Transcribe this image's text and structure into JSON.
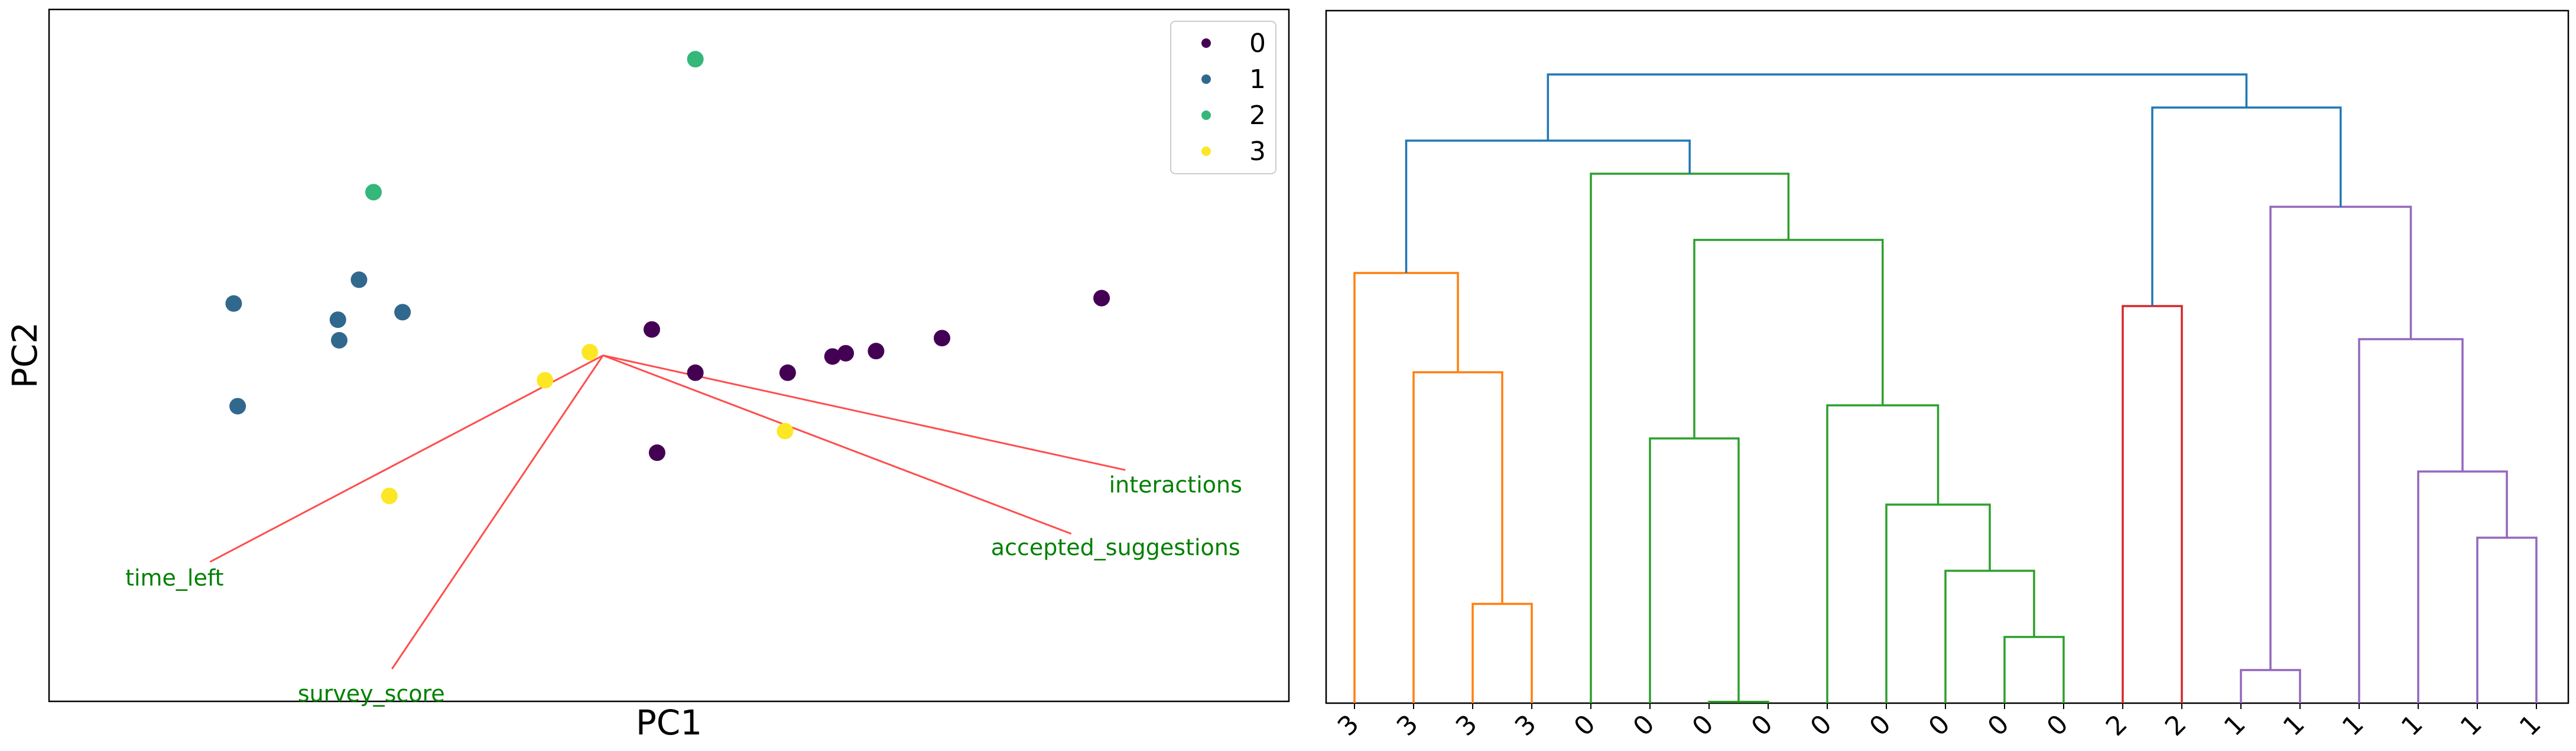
{
  "chart_data": [
    {
      "type": "scatter",
      "title": "",
      "xlabel": "PC1",
      "ylabel": "PC2",
      "xlim": [
        -4.2,
        5.2
      ],
      "ylim": [
        -3.2,
        3.2
      ],
      "grid": false,
      "legend_position": "top-right",
      "colors": {
        "0": "#440154",
        "1": "#31688e",
        "2": "#35b779",
        "3": "#fde725"
      },
      "series": [
        {
          "name": "0",
          "points": [
            [
              0.37,
              0.24
            ],
            [
              0.7,
              -0.16
            ],
            [
              1.4,
              -0.16
            ],
            [
              1.74,
              -0.01
            ],
            [
              1.84,
              0.02
            ],
            [
              2.07,
              0.04
            ],
            [
              2.57,
              0.16
            ],
            [
              3.78,
              0.53
            ],
            [
              0.41,
              -0.9
            ]
          ]
        },
        {
          "name": "1",
          "points": [
            [
              -2.8,
              0.48
            ],
            [
              -1.85,
              0.7
            ],
            [
              -2.01,
              0.33
            ],
            [
              -1.52,
              0.4
            ],
            [
              -2.0,
              0.14
            ],
            [
              -2.77,
              -0.47
            ]
          ]
        },
        {
          "name": "2",
          "points": [
            [
              0.7,
              2.74
            ],
            [
              -1.74,
              1.51
            ]
          ]
        },
        {
          "name": "3",
          "points": [
            [
              -0.1,
              0.03
            ],
            [
              -0.44,
              -0.23
            ],
            [
              -1.62,
              -1.3
            ],
            [
              1.38,
              -0.7
            ]
          ]
        }
      ],
      "legend": [
        "0",
        "1",
        "2",
        "3"
      ],
      "loading_vectors": [
        {
          "label": "time_left",
          "x": -2.98,
          "y": -1.91
        },
        {
          "label": "survey_score",
          "x": -1.6,
          "y": -2.9
        },
        {
          "label": "interactions",
          "x": 3.96,
          "y": -1.06
        },
        {
          "label": "accepted_suggestions",
          "x": 3.55,
          "y": -1.65
        }
      ],
      "vector_origin": [
        0.0,
        0.0
      ],
      "vector_color": "#ff4d4d",
      "vector_label_color": "#008000"
    },
    {
      "type": "dendrogram",
      "title": "",
      "xlabel": "",
      "ylabel": "",
      "ylim": [
        0,
        10
      ],
      "leaf_labels": [
        "3",
        "3",
        "3",
        "3",
        "0",
        "0",
        "0",
        "0",
        "0",
        "0",
        "0",
        "0",
        "0",
        "2",
        "2",
        "1",
        "1",
        "1",
        "1",
        "1",
        "1"
      ],
      "cluster_colors": {
        "orange": "#ff7f0e",
        "green": "#2ca02c",
        "red": "#d62728",
        "purple": "#9467bd",
        "blue": "#1f77b4"
      },
      "links": [
        {
          "left": 2,
          "right": 3,
          "height": 1.5,
          "color": "orange"
        },
        {
          "left": 1,
          "right": 21,
          "height": 5.0,
          "color": "orange"
        },
        {
          "left": 0,
          "right": 22,
          "height": 6.5,
          "color": "orange"
        },
        {
          "left": 6,
          "right": 7,
          "height": 0.02,
          "color": "green"
        },
        {
          "left": 5,
          "right": 24,
          "height": 4.0,
          "color": "green"
        },
        {
          "left": 11,
          "right": 12,
          "height": 1.0,
          "color": "green"
        },
        {
          "left": 10,
          "right": 26,
          "height": 2.0,
          "color": "green"
        },
        {
          "left": 9,
          "right": 27,
          "height": 3.0,
          "color": "green"
        },
        {
          "left": 8,
          "right": 28,
          "height": 4.5,
          "color": "green"
        },
        {
          "left": 25,
          "right": 29,
          "height": 7.0,
          "color": "green"
        },
        {
          "left": 4,
          "right": 30,
          "height": 8.0,
          "color": "green"
        },
        {
          "left": 13,
          "right": 14,
          "height": 6.0,
          "color": "red"
        },
        {
          "left": 15,
          "right": 16,
          "height": 0.5,
          "color": "purple"
        },
        {
          "left": 19,
          "right": 20,
          "height": 2.5,
          "color": "purple"
        },
        {
          "left": 18,
          "right": 34,
          "height": 3.5,
          "color": "purple"
        },
        {
          "left": 17,
          "right": 35,
          "height": 5.5,
          "color": "purple"
        },
        {
          "left": 33,
          "right": 36,
          "height": 7.5,
          "color": "purple"
        },
        {
          "left": 23,
          "right": 31,
          "height": 8.5,
          "color": "blue"
        },
        {
          "left": 32,
          "right": 37,
          "height": 9.0,
          "color": "blue"
        },
        {
          "left": 38,
          "right": 39,
          "height": 9.5,
          "color": "blue"
        }
      ]
    }
  ]
}
